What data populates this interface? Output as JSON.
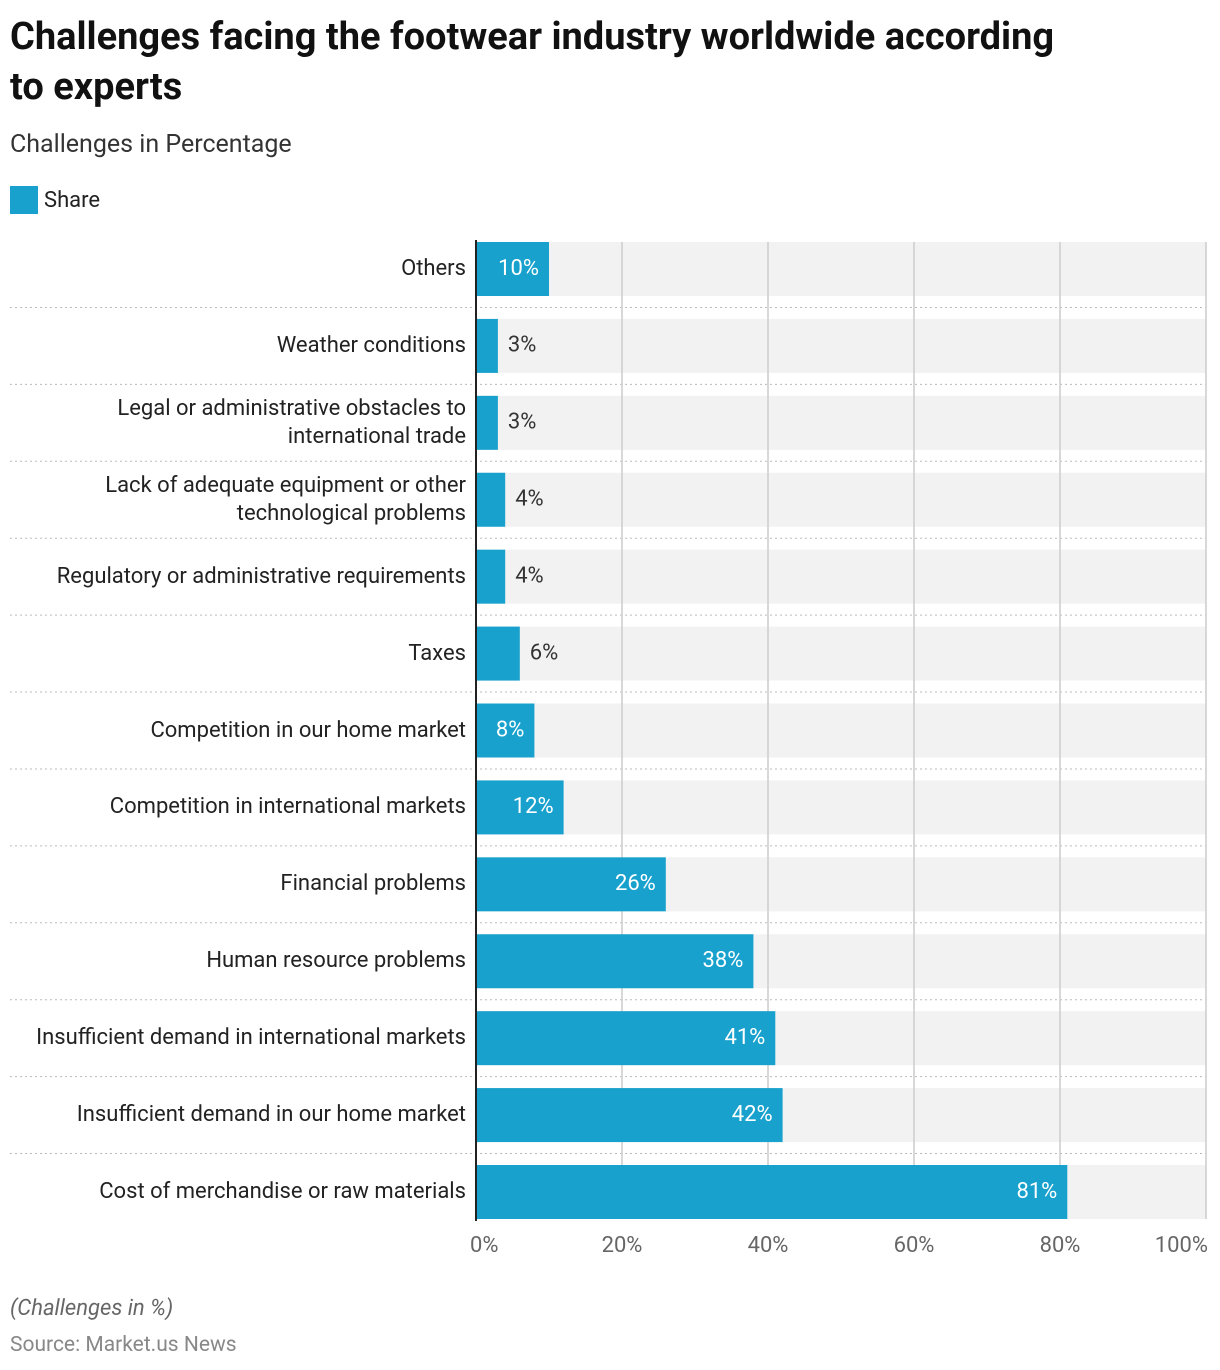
{
  "chart_data": {
    "type": "bar",
    "orientation": "horizontal",
    "title": "Challenges facing the footwear industry worldwide according to experts",
    "subtitle": "Challenges in Percentage",
    "categories": [
      "Others",
      "Weather conditions",
      "Legal or administrative obstacles to international trade",
      "Lack of adequate equipment or other technological problems",
      "Regulatory or administrative requirements",
      "Taxes",
      "Competition in our home market",
      "Competition in international markets",
      "Financial problems",
      "Human resource problems",
      "Insufficient demand in international markets",
      "Insufficient demand in our home market",
      "Cost of merchandise or raw materials"
    ],
    "series": [
      {
        "name": "Share",
        "color": "#18a1cd",
        "values": [
          10,
          3,
          3,
          4,
          4,
          6,
          8,
          12,
          26,
          38,
          41,
          42,
          81
        ],
        "value_labels": [
          "10%",
          "3%",
          "3%",
          "4%",
          "4%",
          "6%",
          "8%",
          "12%",
          "26%",
          "38%",
          "41%",
          "42%",
          "81%"
        ]
      }
    ],
    "xlim": [
      0,
      100
    ],
    "xticks": [
      {
        "value": 0,
        "label": "0%"
      },
      {
        "value": 20,
        "label": "20%"
      },
      {
        "value": 40,
        "label": "40%"
      },
      {
        "value": 60,
        "label": "60%"
      },
      {
        "value": 80,
        "label": "80%"
      },
      {
        "value": 100,
        "label": "100%"
      }
    ],
    "grid": true,
    "note": "(Challenges in %)",
    "source": "Source: Market.us News"
  }
}
